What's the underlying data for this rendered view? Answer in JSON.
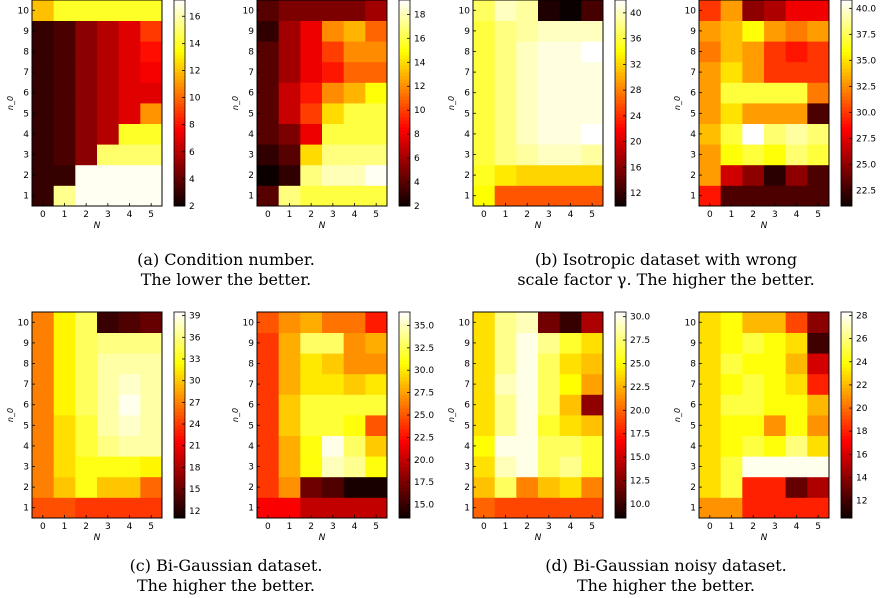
{
  "colormap": "hot",
  "colors": {
    "background": "#ffffff",
    "axis": "#000000"
  },
  "captions": [
    {
      "line1": "(a) Condition number.",
      "line2": "The lower the better."
    },
    {
      "line1": "(b) Isotropic dataset with wrong",
      "line2": "scale factor γ. The higher the better."
    },
    {
      "line1": "(c) Bi-Gaussian dataset.",
      "line2": "The higher the better."
    },
    {
      "line1": "(d) Bi-Gaussian noisy dataset.",
      "line2": "The higher the better."
    }
  ],
  "chart_data": [
    {
      "type": "heatmap",
      "id": "a-left",
      "xlabel": "N",
      "ylabel": "n_0",
      "x": [
        "0",
        "1",
        "2",
        "3",
        "4",
        "5"
      ],
      "y": [
        "1",
        "2",
        "3",
        "4",
        "5",
        "6",
        "7",
        "8",
        "9",
        "10"
      ],
      "vmin": 2,
      "vmax": 17.2,
      "colorbar_ticks": [
        2,
        4,
        6,
        8,
        10,
        12,
        14,
        16
      ],
      "values": [
        [
          3,
          15.5,
          17,
          17,
          17,
          17
        ],
        [
          3,
          3,
          17,
          17,
          17,
          17
        ],
        [
          3,
          3.5,
          5,
          15,
          15,
          15
        ],
        [
          3,
          3.5,
          5,
          6,
          14,
          14
        ],
        [
          3,
          3.5,
          5,
          6,
          7,
          11
        ],
        [
          3,
          3.5,
          5,
          6,
          7,
          7
        ],
        [
          3,
          3.5,
          5,
          6,
          7,
          7.5
        ],
        [
          3,
          3.5,
          5,
          6,
          7,
          8
        ],
        [
          3,
          3.5,
          5,
          6,
          7,
          9
        ],
        [
          12,
          14,
          14,
          14,
          14,
          14
        ]
      ]
    },
    {
      "type": "heatmap",
      "id": "a-right",
      "xlabel": "N",
      "ylabel": "n_0",
      "x": [
        "0",
        "1",
        "2",
        "3",
        "4",
        "5"
      ],
      "y": [
        "1",
        "2",
        "3",
        "4",
        "5",
        "6",
        "7",
        "8",
        "9",
        "10"
      ],
      "vmin": 2,
      "vmax": 19.2,
      "colorbar_ticks": [
        2,
        4,
        6,
        8,
        10,
        12,
        14,
        16,
        18
      ],
      "values": [
        [
          4,
          17,
          16,
          16,
          16,
          16
        ],
        [
          2,
          3,
          17,
          18,
          18,
          19
        ],
        [
          3,
          4,
          14,
          17,
          17,
          17
        ],
        [
          4,
          5,
          8,
          16,
          16,
          16
        ],
        [
          4,
          7,
          10,
          14,
          16,
          16
        ],
        [
          4,
          7,
          9,
          12,
          13,
          15
        ],
        [
          4,
          6,
          8,
          9,
          11,
          11
        ],
        [
          4,
          6,
          8,
          10,
          12,
          12
        ],
        [
          3,
          6,
          8,
          12,
          13,
          11
        ],
        [
          4,
          5,
          5,
          5,
          5,
          6
        ]
      ]
    },
    {
      "type": "heatmap",
      "id": "b-left",
      "xlabel": "N",
      "ylabel": "n_0",
      "x": [
        "0",
        "1",
        "2",
        "3",
        "4",
        "5"
      ],
      "y": [
        "1",
        "2",
        "3",
        "4",
        "5",
        "6",
        "7",
        "8",
        "9",
        "10"
      ],
      "vmin": 10,
      "vmax": 42,
      "colorbar_ticks": [
        12,
        16,
        20,
        24,
        28,
        32,
        36,
        40
      ],
      "values": [
        [
          34,
          26,
          26,
          26,
          26,
          26
        ],
        [
          35,
          33,
          32,
          32,
          32,
          32
        ],
        [
          36,
          38,
          39,
          40,
          40,
          39
        ],
        [
          36,
          38,
          40,
          41,
          41,
          42
        ],
        [
          36,
          38,
          40,
          41,
          41,
          41
        ],
        [
          36,
          38,
          40,
          41,
          41,
          41
        ],
        [
          36,
          38,
          40,
          41,
          41,
          41
        ],
        [
          36,
          38,
          40,
          41,
          41,
          42
        ],
        [
          36,
          38,
          39,
          40,
          40,
          40
        ],
        [
          37,
          40,
          39,
          11,
          10,
          13
        ]
      ]
    },
    {
      "type": "heatmap",
      "id": "b-right",
      "xlabel": "N",
      "ylabel": "n_0",
      "x": [
        "0",
        "1",
        "2",
        "3",
        "4",
        "5"
      ],
      "y": [
        "1",
        "2",
        "3",
        "4",
        "5",
        "6",
        "7",
        "8",
        "9",
        "10"
      ],
      "vmin": 21,
      "vmax": 40.8,
      "colorbar_ticks": [
        22.5,
        25.0,
        27.5,
        30.0,
        32.5,
        35.0,
        37.5,
        40.0
      ],
      "values": [
        [
          29,
          23,
          23,
          23,
          23,
          23
        ],
        [
          33,
          27,
          25,
          22,
          25,
          23
        ],
        [
          33,
          36,
          37,
          36,
          38,
          37
        ],
        [
          34,
          37,
          41,
          38,
          39,
          38
        ],
        [
          33,
          35,
          33,
          33,
          33,
          23
        ],
        [
          33,
          37,
          37,
          37,
          37,
          32
        ],
        [
          33,
          35,
          33,
          30,
          30,
          30
        ],
        [
          32,
          34,
          33,
          30,
          29,
          30
        ],
        [
          33,
          34,
          36,
          33,
          32,
          33
        ],
        [
          30,
          33,
          25,
          26,
          28,
          28
        ]
      ]
    },
    {
      "type": "heatmap",
      "id": "c-left",
      "xlabel": "N",
      "ylabel": "n_0",
      "x": [
        "0",
        "1",
        "2",
        "3",
        "4",
        "5"
      ],
      "y": [
        "1",
        "2",
        "3",
        "4",
        "5",
        "6",
        "7",
        "8",
        "9",
        "10"
      ],
      "vmin": 11,
      "vmax": 39.5,
      "colorbar_ticks": [
        12,
        15,
        18,
        21,
        24,
        27,
        30,
        33,
        36,
        39
      ],
      "values": [
        [
          25,
          25,
          24,
          24,
          24,
          24
        ],
        [
          27,
          30,
          33,
          30,
          30,
          26
        ],
        [
          27,
          31,
          33,
          33,
          33,
          32
        ],
        [
          27,
          31,
          34,
          36,
          37,
          37
        ],
        [
          27,
          31,
          34,
          37,
          38,
          37
        ],
        [
          27,
          32,
          35,
          37,
          39,
          37
        ],
        [
          27,
          32,
          35,
          37,
          38,
          37
        ],
        [
          27,
          32,
          35,
          37,
          37,
          37
        ],
        [
          27,
          32,
          35,
          36,
          36,
          36
        ],
        [
          27,
          32,
          35,
          13,
          14,
          15
        ]
      ]
    },
    {
      "type": "heatmap",
      "id": "c-right",
      "xlabel": "N",
      "ylabel": "n_0",
      "x": [
        "0",
        "1",
        "2",
        "3",
        "4",
        "5"
      ],
      "y": [
        "1",
        "2",
        "3",
        "4",
        "5",
        "6",
        "7",
        "8",
        "9",
        "10"
      ],
      "vmin": 13.5,
      "vmax": 36.5,
      "colorbar_ticks": [
        15.0,
        17.5,
        20.0,
        22.5,
        25.0,
        27.5,
        30.0,
        32.5,
        35.0
      ],
      "values": [
        [
          22,
          22,
          20,
          20,
          20,
          20
        ],
        [
          24,
          27,
          17,
          16,
          14,
          14
        ],
        [
          24,
          28,
          31,
          35,
          34,
          31
        ],
        [
          24,
          28,
          31,
          36,
          33,
          29
        ],
        [
          24,
          29,
          32,
          32,
          31,
          25
        ],
        [
          24,
          29,
          32,
          32,
          32,
          32
        ],
        [
          24,
          28,
          30,
          30,
          29,
          30
        ],
        [
          24,
          28,
          30,
          29,
          27,
          27
        ],
        [
          24,
          28,
          33,
          33,
          27,
          28
        ],
        [
          25,
          27,
          28,
          26,
          26,
          23
        ]
      ]
    },
    {
      "type": "heatmap",
      "id": "d-left",
      "xlabel": "N",
      "ylabel": "n_0",
      "x": [
        "0",
        "1",
        "2",
        "3",
        "4",
        "5"
      ],
      "y": [
        "1",
        "2",
        "3",
        "4",
        "5",
        "6",
        "7",
        "8",
        "9",
        "10"
      ],
      "vmin": 8.5,
      "vmax": 30.5,
      "colorbar_ticks": [
        10.0,
        12.5,
        15.0,
        17.5,
        20.0,
        22.5,
        25.0,
        27.5,
        30.0
      ],
      "values": [
        [
          20,
          19,
          19,
          19,
          19,
          19
        ],
        [
          23,
          27,
          21,
          23,
          24,
          21
        ],
        [
          24,
          29,
          30,
          27,
          28,
          26
        ],
        [
          25,
          30,
          30,
          27,
          27,
          26
        ],
        [
          24,
          28,
          30,
          26,
          24,
          23
        ],
        [
          24,
          28,
          30,
          27,
          23,
          13
        ],
        [
          24,
          29,
          30,
          27,
          25,
          22
        ],
        [
          24,
          28,
          30,
          27,
          24,
          23
        ],
        [
          24,
          28,
          30,
          28,
          26,
          24
        ],
        [
          24,
          28,
          29,
          12,
          10,
          14
        ]
      ]
    },
    {
      "type": "heatmap",
      "id": "d-right",
      "xlabel": "N",
      "ylabel": "n_0",
      "x": [
        "0",
        "1",
        "2",
        "3",
        "4",
        "5"
      ],
      "y": [
        "1",
        "2",
        "3",
        "4",
        "5",
        "6",
        "7",
        "8",
        "9",
        "10"
      ],
      "vmin": 10.5,
      "vmax": 28.3,
      "colorbar_ticks": [
        12,
        14,
        16,
        18,
        20,
        22,
        24,
        26,
        28
      ],
      "values": [
        [
          21,
          21,
          18,
          18,
          18,
          18
        ],
        [
          23,
          25,
          18,
          18,
          13,
          15
        ],
        [
          23,
          25,
          28,
          28,
          28,
          28
        ],
        [
          23,
          24,
          25,
          24,
          26,
          23
        ],
        [
          23,
          24,
          24,
          21,
          24,
          21
        ],
        [
          23,
          25,
          25,
          24,
          24,
          22
        ],
        [
          23,
          24,
          25,
          24,
          23,
          18
        ],
        [
          23,
          25,
          24,
          24,
          22,
          16
        ],
        [
          23,
          24,
          25,
          24,
          23,
          12
        ],
        [
          23,
          24,
          22,
          22,
          19,
          14
        ]
      ]
    }
  ]
}
